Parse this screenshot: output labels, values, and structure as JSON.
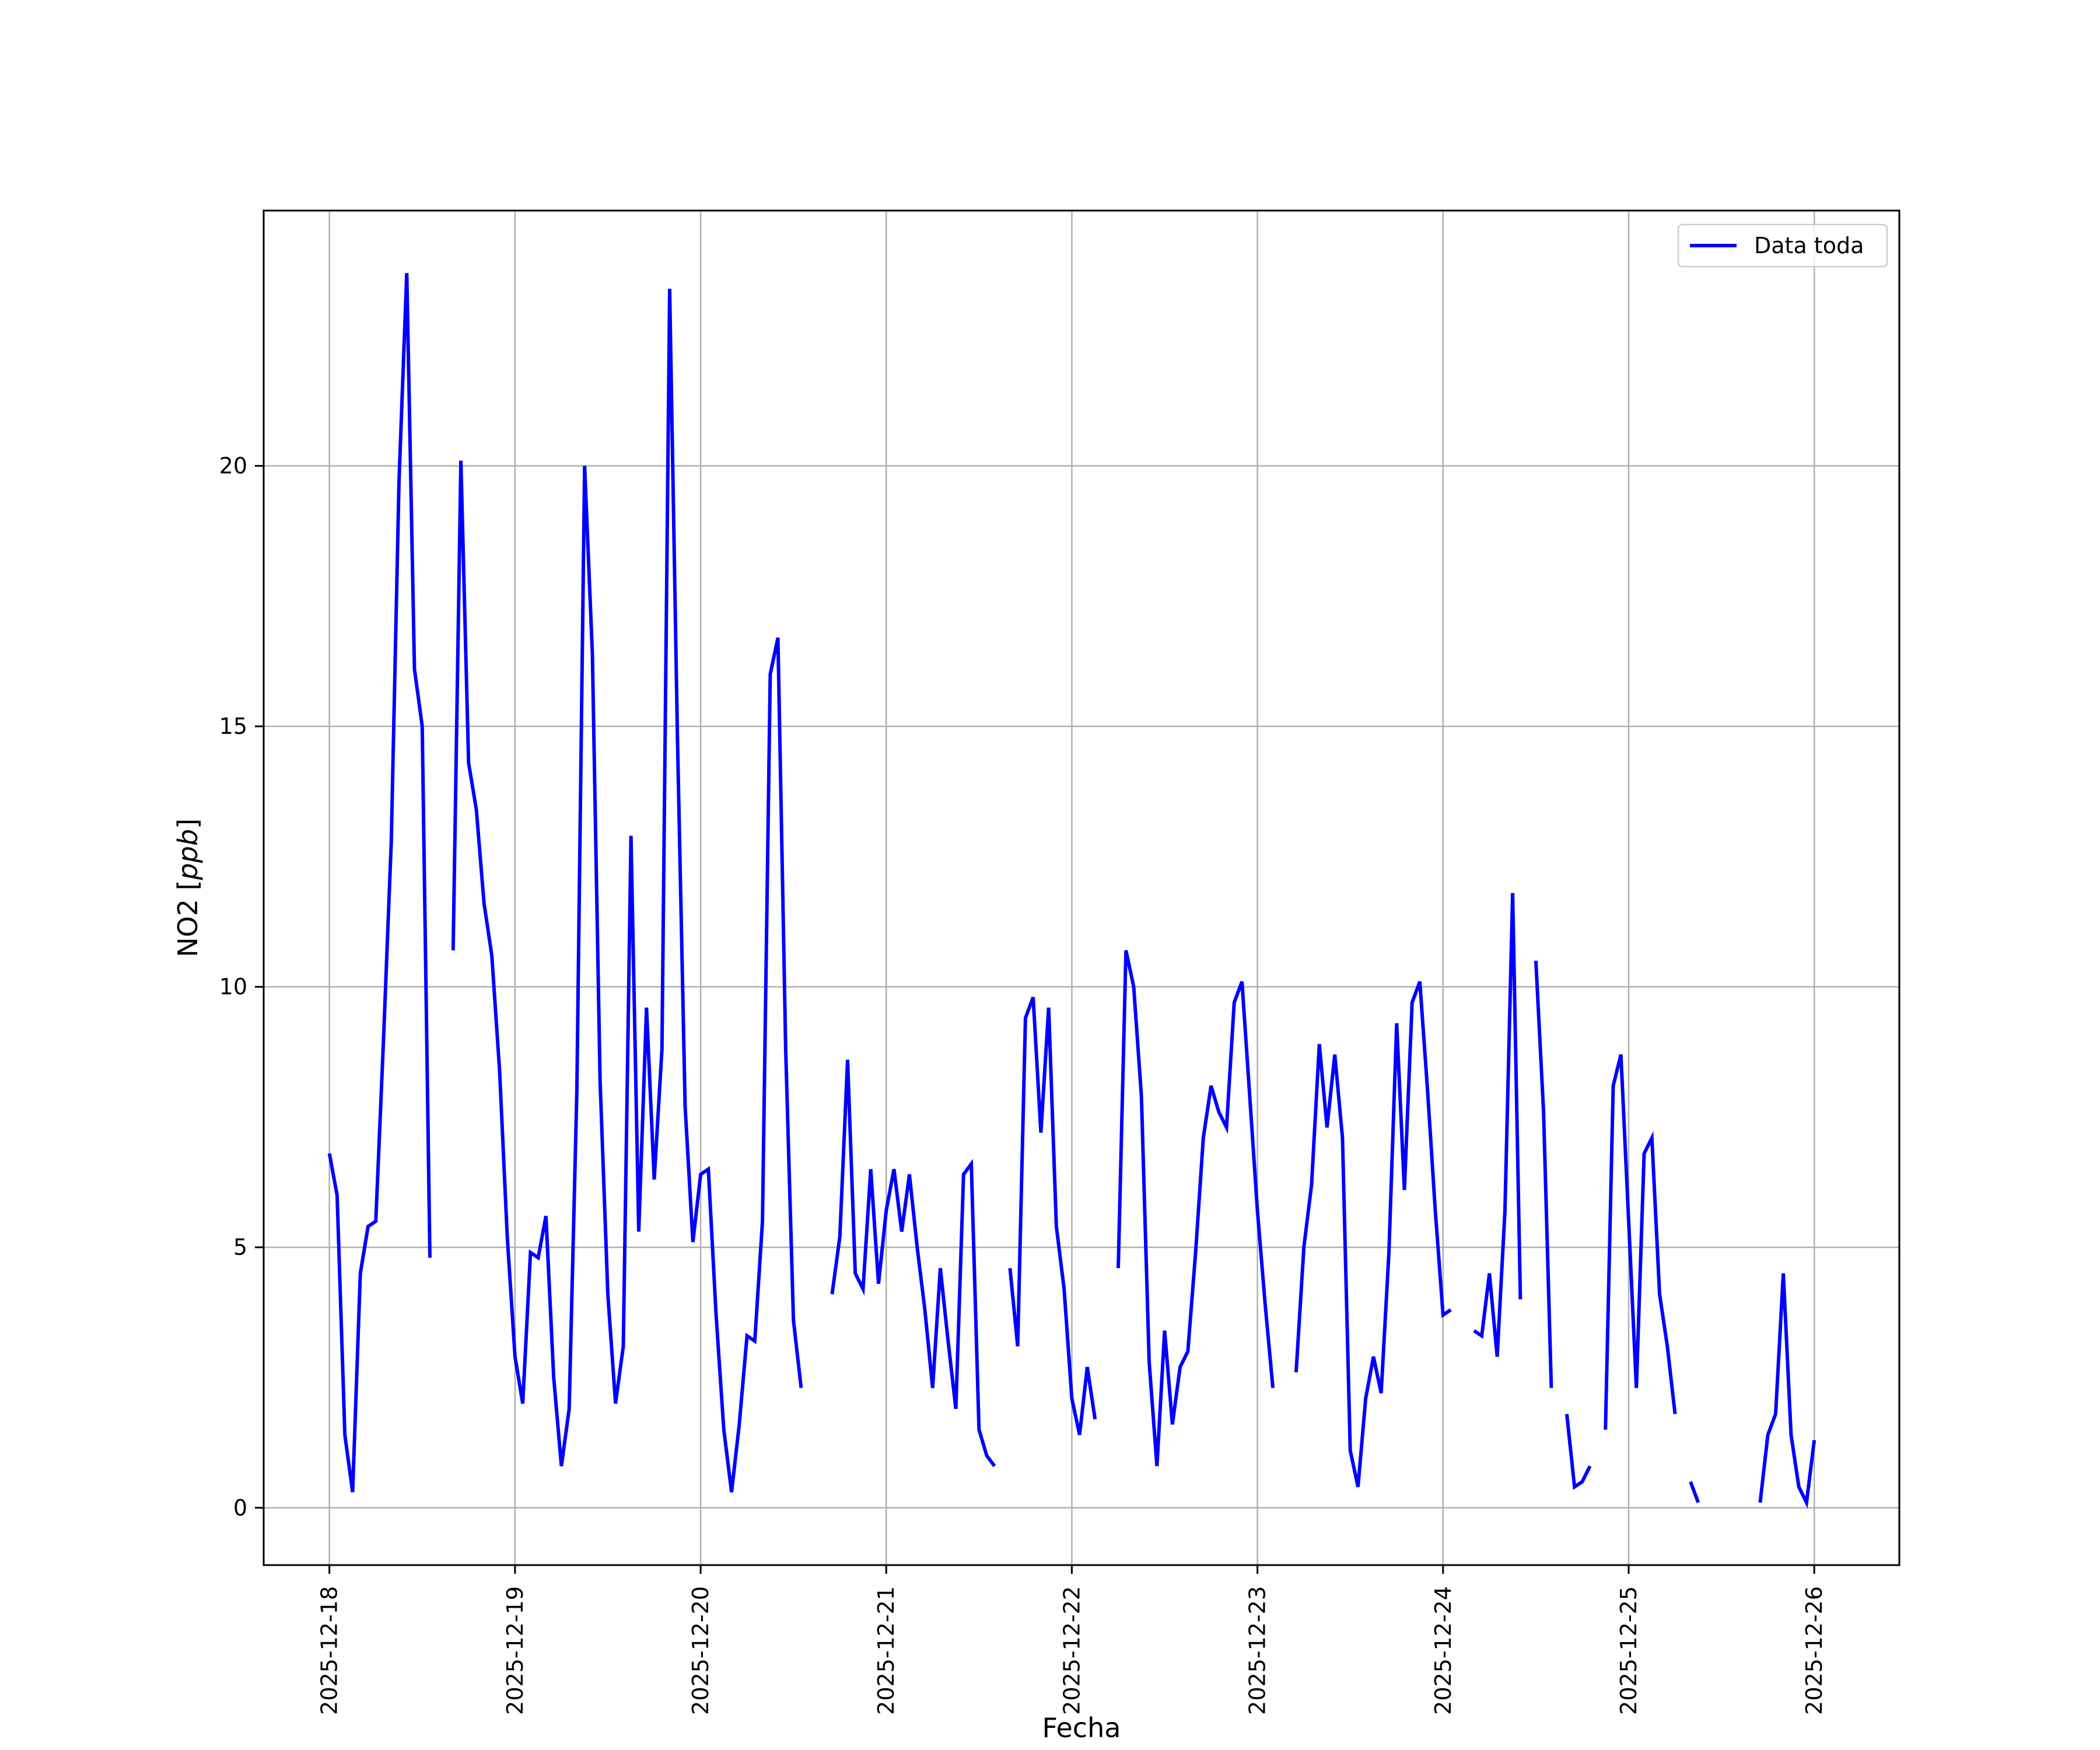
{
  "chart_data": {
    "type": "line",
    "title": "",
    "xlabel": "Fecha",
    "ylabel": "NO2 [ppb]",
    "ylabel_unit": "ppb",
    "ylabel_prefix": "NO2",
    "xlim": [
      "2025-12-17T15:30",
      "2025-12-26T11:00"
    ],
    "ylim": [
      -1.1,
      24.9
    ],
    "grid": true,
    "legend_position": "top-right",
    "x_ticks": [
      "2025-12-18",
      "2025-12-19",
      "2025-12-20",
      "2025-12-21",
      "2025-12-22",
      "2025-12-23",
      "2025-12-24",
      "2025-12-25",
      "2025-12-26"
    ],
    "y_ticks": [
      0,
      5,
      10,
      15,
      20
    ],
    "series": [
      {
        "name": "Data toda",
        "color": "#0000ff",
        "segments": [
          [
            [
              "2025-12-18T00:00",
              6.8
            ],
            [
              "2025-12-18T01:00",
              6.0
            ],
            [
              "2025-12-18T02:00",
              1.4
            ],
            [
              "2025-12-18T03:00",
              0.3
            ],
            [
              "2025-12-18T04:00",
              4.5
            ],
            [
              "2025-12-18T05:00",
              5.4
            ],
            [
              "2025-12-18T06:00",
              5.5
            ],
            [
              "2025-12-18T07:00",
              9.0
            ],
            [
              "2025-12-18T08:00",
              12.8
            ],
            [
              "2025-12-18T09:00",
              19.7
            ],
            [
              "2025-12-18T10:00",
              23.7
            ],
            [
              "2025-12-18T11:00",
              16.1
            ],
            [
              "2025-12-18T12:00",
              15.0
            ],
            [
              "2025-12-18T13:00",
              4.8
            ]
          ],
          [
            [
              "2025-12-18T16:00",
              10.7
            ],
            [
              "2025-12-18T17:00",
              20.1
            ],
            [
              "2025-12-18T18:00",
              14.3
            ],
            [
              "2025-12-18T19:00",
              13.4
            ],
            [
              "2025-12-18T20:00",
              11.6
            ],
            [
              "2025-12-18T21:00",
              10.6
            ],
            [
              "2025-12-18T22:00",
              8.4
            ],
            [
              "2025-12-18T23:00",
              5.2
            ],
            [
              "2025-12-19T00:00",
              2.9
            ],
            [
              "2025-12-19T01:00",
              2.0
            ],
            [
              "2025-12-19T02:00",
              4.9
            ],
            [
              "2025-12-19T03:00",
              4.8
            ],
            [
              "2025-12-19T04:00",
              5.6
            ],
            [
              "2025-12-19T05:00",
              2.5
            ],
            [
              "2025-12-19T06:00",
              0.8
            ],
            [
              "2025-12-19T07:00",
              1.9
            ],
            [
              "2025-12-19T08:00",
              8.0
            ],
            [
              "2025-12-19T09:00",
              20.0
            ],
            [
              "2025-12-19T10:00",
              16.4
            ],
            [
              "2025-12-19T11:00",
              8.2
            ],
            [
              "2025-12-19T12:00",
              4.1
            ],
            [
              "2025-12-19T13:00",
              2.0
            ],
            [
              "2025-12-19T14:00",
              3.1
            ],
            [
              "2025-12-19T15:00",
              12.9
            ],
            [
              "2025-12-19T16:00",
              5.3
            ],
            [
              "2025-12-19T17:00",
              9.6
            ],
            [
              "2025-12-19T18:00",
              6.3
            ],
            [
              "2025-12-19T19:00",
              8.8
            ],
            [
              "2025-12-19T20:00",
              23.4
            ],
            [
              "2025-12-19T21:00",
              14.8
            ],
            [
              "2025-12-19T22:00",
              7.7
            ],
            [
              "2025-12-19T23:00",
              5.1
            ],
            [
              "2025-12-20T00:00",
              6.4
            ],
            [
              "2025-12-20T01:00",
              6.5
            ],
            [
              "2025-12-20T02:00",
              3.7
            ],
            [
              "2025-12-20T03:00",
              1.5
            ],
            [
              "2025-12-20T04:00",
              0.3
            ],
            [
              "2025-12-20T05:00",
              1.6
            ],
            [
              "2025-12-20T06:00",
              3.3
            ],
            [
              "2025-12-20T07:00",
              3.2
            ],
            [
              "2025-12-20T08:00",
              5.5
            ],
            [
              "2025-12-20T09:00",
              16.0
            ],
            [
              "2025-12-20T10:00",
              16.7
            ],
            [
              "2025-12-20T11:00",
              8.8
            ],
            [
              "2025-12-20T12:00",
              3.6
            ],
            [
              "2025-12-20T13:00",
              2.3
            ]
          ],
          [
            [
              "2025-12-20T17:00",
              4.1
            ],
            [
              "2025-12-20T18:00",
              5.2
            ],
            [
              "2025-12-20T19:00",
              8.6
            ],
            [
              "2025-12-20T20:00",
              4.5
            ],
            [
              "2025-12-20T21:00",
              4.2
            ],
            [
              "2025-12-20T22:00",
              6.5
            ],
            [
              "2025-12-20T23:00",
              4.3
            ],
            [
              "2025-12-21T00:00",
              5.7
            ],
            [
              "2025-12-21T01:00",
              6.5
            ],
            [
              "2025-12-21T02:00",
              5.3
            ],
            [
              "2025-12-21T03:00",
              6.4
            ],
            [
              "2025-12-21T04:00",
              5.0
            ],
            [
              "2025-12-21T05:00",
              3.8
            ],
            [
              "2025-12-21T06:00",
              2.3
            ],
            [
              "2025-12-21T07:00",
              4.6
            ],
            [
              "2025-12-21T08:00",
              3.2
            ],
            [
              "2025-12-21T09:00",
              1.9
            ],
            [
              "2025-12-21T10:00",
              6.4
            ],
            [
              "2025-12-21T11:00",
              6.6
            ],
            [
              "2025-12-21T12:00",
              1.5
            ],
            [
              "2025-12-21T13:00",
              1.0
            ],
            [
              "2025-12-21T14:00",
              0.8
            ]
          ],
          [
            [
              "2025-12-21T16:00",
              4.6
            ],
            [
              "2025-12-21T17:00",
              3.1
            ],
            [
              "2025-12-21T18:00",
              9.4
            ],
            [
              "2025-12-21T19:00",
              9.8
            ],
            [
              "2025-12-21T20:00",
              7.2
            ],
            [
              "2025-12-21T21:00",
              9.6
            ],
            [
              "2025-12-21T22:00",
              5.4
            ],
            [
              "2025-12-21T23:00",
              4.2
            ],
            [
              "2025-12-22T00:00",
              2.1
            ],
            [
              "2025-12-22T01:00",
              1.4
            ],
            [
              "2025-12-22T02:00",
              2.7
            ],
            [
              "2025-12-22T03:00",
              1.7
            ]
          ],
          [
            [
              "2025-12-22T06:00",
              4.6
            ],
            [
              "2025-12-22T07:00",
              10.7
            ],
            [
              "2025-12-22T08:00",
              10.0
            ],
            [
              "2025-12-22T09:00",
              7.9
            ],
            [
              "2025-12-22T10:00",
              2.8
            ],
            [
              "2025-12-22T11:00",
              0.8
            ],
            [
              "2025-12-22T12:00",
              3.4
            ],
            [
              "2025-12-22T13:00",
              1.6
            ],
            [
              "2025-12-22T14:00",
              2.7
            ],
            [
              "2025-12-22T15:00",
              3.0
            ],
            [
              "2025-12-22T16:00",
              4.9
            ],
            [
              "2025-12-22T17:00",
              7.1
            ],
            [
              "2025-12-22T18:00",
              8.1
            ],
            [
              "2025-12-22T19:00",
              7.6
            ],
            [
              "2025-12-22T20:00",
              7.3
            ],
            [
              "2025-12-22T21:00",
              9.7
            ],
            [
              "2025-12-22T22:00",
              10.1
            ],
            [
              "2025-12-22T23:00",
              7.9
            ],
            [
              "2025-12-23T00:00",
              5.7
            ],
            [
              "2025-12-23T01:00",
              3.9
            ],
            [
              "2025-12-23T02:00",
              2.3
            ]
          ],
          [
            [
              "2025-12-23T05:00",
              2.6
            ],
            [
              "2025-12-23T06:00",
              5.0
            ],
            [
              "2025-12-23T07:00",
              6.2
            ],
            [
              "2025-12-23T08:00",
              8.9
            ],
            [
              "2025-12-23T09:00",
              7.3
            ],
            [
              "2025-12-23T10:00",
              8.7
            ],
            [
              "2025-12-23T11:00",
              7.1
            ],
            [
              "2025-12-23T12:00",
              1.1
            ],
            [
              "2025-12-23T13:00",
              0.4
            ],
            [
              "2025-12-23T14:00",
              2.1
            ],
            [
              "2025-12-23T15:00",
              2.9
            ],
            [
              "2025-12-23T16:00",
              2.2
            ],
            [
              "2025-12-23T17:00",
              4.9
            ],
            [
              "2025-12-23T18:00",
              9.3
            ],
            [
              "2025-12-23T19:00",
              6.1
            ],
            [
              "2025-12-23T20:00",
              9.7
            ],
            [
              "2025-12-23T21:00",
              10.1
            ],
            [
              "2025-12-23T22:00",
              8.0
            ],
            [
              "2025-12-23T23:00",
              5.7
            ],
            [
              "2025-12-24T00:00",
              3.7
            ],
            [
              "2025-12-24T01:00",
              3.8
            ]
          ],
          [
            [
              "2025-12-24T04:00",
              3.4
            ],
            [
              "2025-12-24T05:00",
              3.3
            ],
            [
              "2025-12-24T06:00",
              4.5
            ],
            [
              "2025-12-24T07:00",
              2.9
            ],
            [
              "2025-12-24T08:00",
              5.7
            ],
            [
              "2025-12-24T09:00",
              11.8
            ],
            [
              "2025-12-24T10:00",
              4.0
            ]
          ],
          [
            [
              "2025-12-24T12:00",
              10.5
            ],
            [
              "2025-12-24T13:00",
              7.6
            ],
            [
              "2025-12-24T14:00",
              2.3
            ]
          ],
          [
            [
              "2025-12-24T16:00",
              1.8
            ],
            [
              "2025-12-24T17:00",
              0.4
            ],
            [
              "2025-12-24T18:00",
              0.5
            ],
            [
              "2025-12-24T19:00",
              0.8
            ]
          ],
          [
            [
              "2025-12-24T21:00",
              1.5
            ],
            [
              "2025-12-24T22:00",
              8.1
            ],
            [
              "2025-12-24T23:00",
              8.7
            ],
            [
              "2025-12-25T00:00",
              5.5
            ],
            [
              "2025-12-25T01:00",
              2.3
            ],
            [
              "2025-12-25T02:00",
              6.8
            ],
            [
              "2025-12-25T03:00",
              7.1
            ],
            [
              "2025-12-25T04:00",
              4.1
            ],
            [
              "2025-12-25T05:00",
              3.1
            ],
            [
              "2025-12-25T06:00",
              1.8
            ]
          ],
          [
            [
              "2025-12-25T08:00",
              0.5
            ],
            [
              "2025-12-25T09:00",
              0.1
            ]
          ],
          [
            [
              "2025-12-25T17:00",
              0.1
            ],
            [
              "2025-12-25T18:00",
              1.4
            ],
            [
              "2025-12-25T19:00",
              1.8
            ],
            [
              "2025-12-25T20:00",
              4.5
            ],
            [
              "2025-12-25T21:00",
              1.4
            ],
            [
              "2025-12-25T22:00",
              0.4
            ],
            [
              "2025-12-25T23:00",
              0.1
            ],
            [
              "2025-12-26T00:00",
              1.3
            ]
          ]
        ]
      }
    ]
  }
}
